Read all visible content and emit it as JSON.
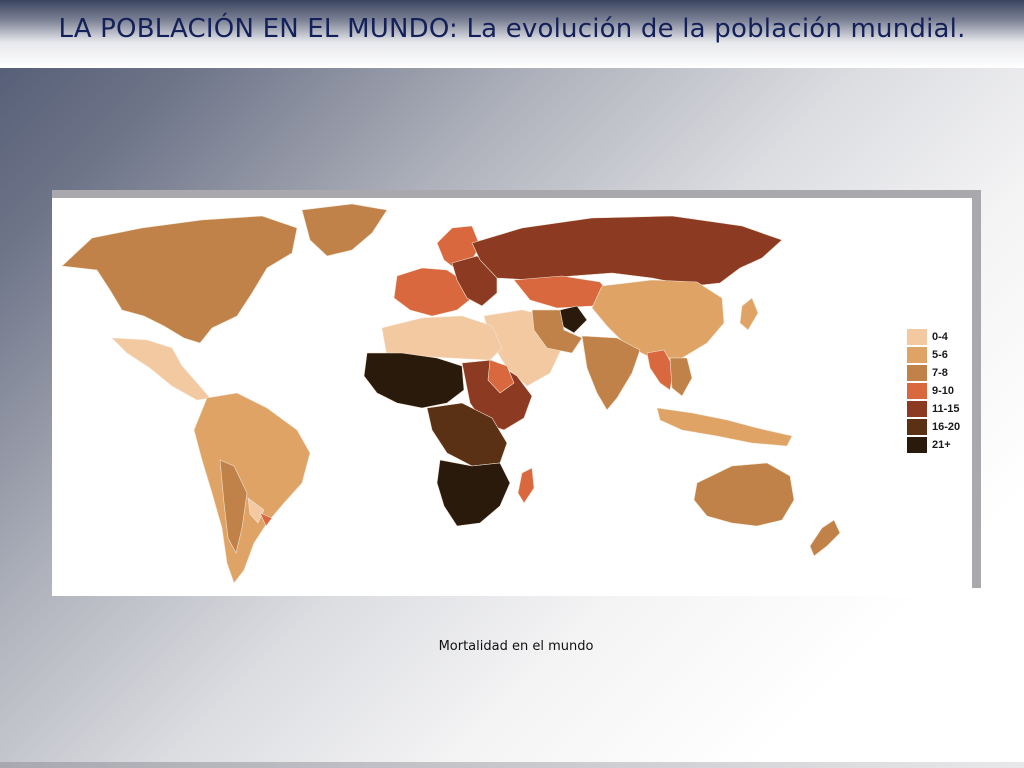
{
  "header": {
    "title": "LA POBLACIÓN EN EL MUNDO: La evolución de la población mundial."
  },
  "map": {
    "legend": [
      {
        "label": "0-4",
        "color": "#f2c9a0"
      },
      {
        "label": "5-6",
        "color": "#dfa366"
      },
      {
        "label": "7-8",
        "color": "#c08248"
      },
      {
        "label": "9-10",
        "color": "#d9683f"
      },
      {
        "label": "11-15",
        "color": "#8c3b22"
      },
      {
        "label": "16-20",
        "color": "#5b3116"
      },
      {
        "label": "21+",
        "color": "#2a1a0c"
      }
    ]
  },
  "caption": "Mortalidad en el mundo"
}
